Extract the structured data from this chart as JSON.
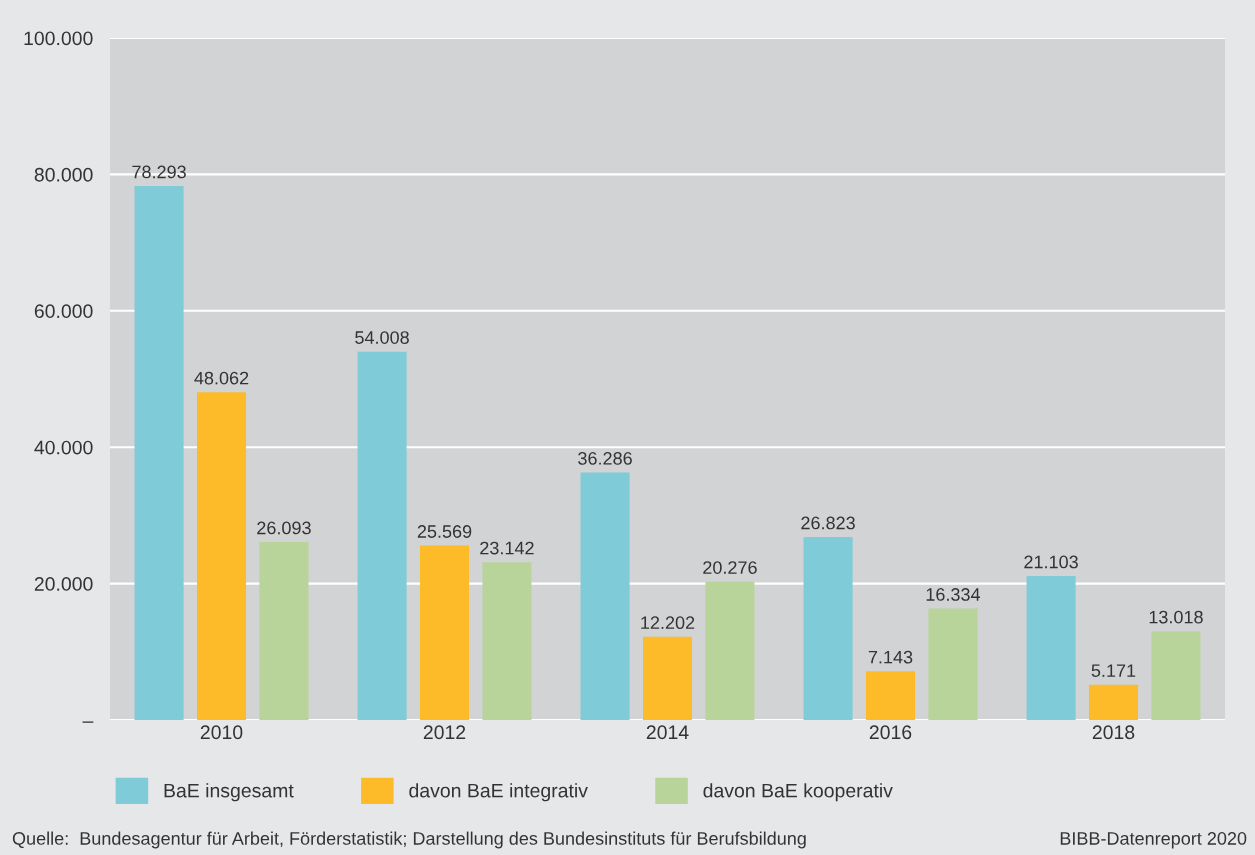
{
  "chart_data": {
    "type": "bar",
    "categories": [
      "2010",
      "2012",
      "2014",
      "2016",
      "2018"
    ],
    "series": [
      {
        "name": "BaE insgesamt",
        "color": "#7fcbd8",
        "values": [
          78293,
          54008,
          36286,
          26823,
          21103
        ],
        "value_labels": [
          "78.293",
          "54.008",
          "36.286",
          "26.823",
          "21.103"
        ]
      },
      {
        "name": "davon BaE integrativ",
        "color": "#fdbb2a",
        "values": [
          48062,
          25569,
          12202,
          7143,
          5171
        ],
        "value_labels": [
          "48.062",
          "25.569",
          "12.202",
          "7.143",
          "5.171"
        ]
      },
      {
        "name": "davon BaE kooperativ",
        "color": "#b8d49a",
        "values": [
          26093,
          23142,
          20276,
          16334,
          13018
        ],
        "value_labels": [
          "26.093",
          "23.142",
          "20.276",
          "16.334",
          "13.018"
        ]
      }
    ],
    "ylim": [
      0,
      100000
    ],
    "yticks": [
      {
        "value": 0,
        "label": "–"
      },
      {
        "value": 20000,
        "label": "20.000"
      },
      {
        "value": 40000,
        "label": "40.000"
      },
      {
        "value": 60000,
        "label": "60.000"
      },
      {
        "value": 80000,
        "label": "80.000"
      },
      {
        "value": 100000,
        "label": "100.000"
      }
    ],
    "grid": "y",
    "legend": "bottom left",
    "annotations": [
      "Quelle:  Bundesagentur für Arbeit, Förderstatistik; Darstellung des Bundesinstituts für Berufsbildung",
      "BIBB-Datenreport 2020"
    ]
  }
}
